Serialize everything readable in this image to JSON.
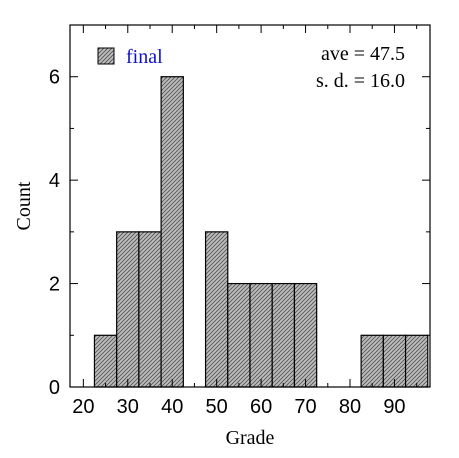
{
  "chart_data": {
    "type": "bar",
    "title": "",
    "xlabel": "Grade",
    "ylabel": "Count",
    "xlim": [
      17,
      98
    ],
    "ylim": [
      0,
      7
    ],
    "x_ticks": [
      20,
      30,
      40,
      50,
      60,
      70,
      80,
      90
    ],
    "y_ticks": [
      0,
      2,
      4,
      6
    ],
    "bin_width": 5,
    "series": [
      {
        "name": "final",
        "bins": [
          {
            "left": 22.5,
            "count": 1
          },
          {
            "left": 27.5,
            "count": 3
          },
          {
            "left": 32.5,
            "count": 3
          },
          {
            "left": 37.5,
            "count": 6
          },
          {
            "left": 47.5,
            "count": 3
          },
          {
            "left": 52.5,
            "count": 2
          },
          {
            "left": 57.5,
            "count": 2
          },
          {
            "left": 62.5,
            "count": 2
          },
          {
            "left": 67.5,
            "count": 2
          },
          {
            "left": 82.5,
            "count": 1
          },
          {
            "left": 87.5,
            "count": 1
          },
          {
            "left": 92.5,
            "count": 1
          }
        ]
      }
    ],
    "annotations": [
      "ave = 47.5",
      "s. d. = 16.0"
    ],
    "legend_position": "top-left",
    "grid": false,
    "colors": {
      "bar_fill": "#bcbcbc",
      "bar_hatch": "#555555",
      "bar_stroke": "#000000",
      "legend_text": "#1010c8",
      "axis": "#000000"
    }
  }
}
